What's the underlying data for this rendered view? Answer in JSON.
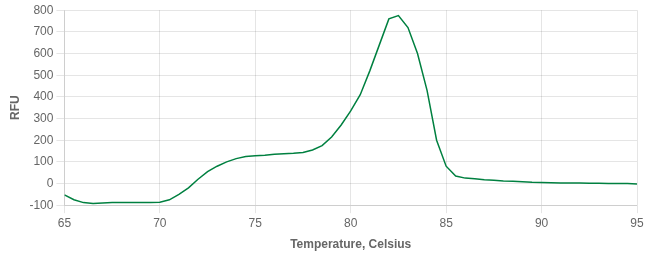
{
  "chart_data": {
    "type": "line",
    "xlabel": "Temperature, Celsius",
    "ylabel": "RFU",
    "x": [
      65.0,
      65.5,
      66.0,
      66.5,
      67.0,
      67.5,
      68.0,
      68.5,
      69.0,
      69.5,
      70.0,
      70.5,
      71.0,
      71.5,
      72.0,
      72.5,
      73.0,
      73.5,
      74.0,
      74.5,
      75.0,
      75.5,
      76.0,
      76.5,
      77.0,
      77.5,
      78.0,
      78.5,
      79.0,
      79.5,
      80.0,
      80.5,
      81.0,
      81.5,
      82.0,
      82.5,
      83.0,
      83.5,
      84.0,
      84.5,
      85.0,
      85.5,
      86.0,
      86.5,
      87.0,
      87.5,
      88.0,
      88.5,
      89.0,
      89.5,
      90.0,
      90.5,
      91.0,
      91.5,
      92.0,
      92.5,
      93.0,
      93.5,
      94.0,
      94.5,
      95.0
    ],
    "values": [
      -52,
      -75,
      -88,
      -92,
      -90,
      -88,
      -88,
      -88,
      -87,
      -87,
      -86,
      -75,
      -50,
      -20,
      20,
      55,
      80,
      100,
      115,
      125,
      128,
      130,
      135,
      138,
      140,
      143,
      155,
      175,
      215,
      270,
      335,
      410,
      520,
      640,
      760,
      775,
      720,
      600,
      430,
      200,
      80,
      35,
      25,
      22,
      18,
      15,
      12,
      10,
      8,
      6,
      5,
      4,
      3,
      2,
      2,
      1,
      1,
      0,
      0,
      0,
      -2
    ],
    "color": "#008040",
    "xlim": [
      65,
      95
    ],
    "ylim": [
      -100,
      800
    ],
    "xticks": [
      65,
      70,
      75,
      80,
      85,
      90,
      95
    ],
    "yticks": [
      -100,
      0,
      100,
      200,
      300,
      400,
      500,
      600,
      700,
      800
    ],
    "grid": true
  }
}
